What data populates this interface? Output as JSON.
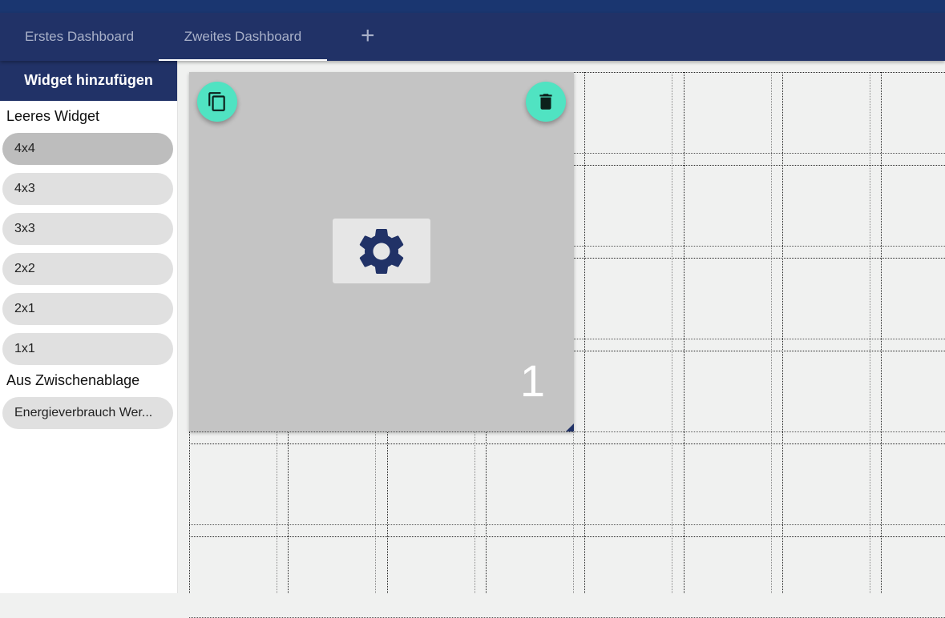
{
  "tabs": [
    {
      "label": "Erstes Dashboard",
      "active": false
    },
    {
      "label": "Zweites Dashboard",
      "active": true
    }
  ],
  "add_tab_label": "+",
  "sidebar": {
    "title": "Widget hinzufügen",
    "empty_section": "Leeres Widget",
    "sizes": [
      "4x4",
      "4x3",
      "3x3",
      "2x2",
      "2x1",
      "1x1"
    ],
    "selected_size": "4x4",
    "clipboard_section": "Aus Zwischenablage",
    "clipboard_items": [
      "Energieverbrauch Wer..."
    ]
  },
  "widget": {
    "number": "1",
    "icons": [
      "copy-icon",
      "delete-icon",
      "gear-icon"
    ]
  },
  "colors": {
    "primary": "#213267",
    "accent": "#50e3c2",
    "widget_bg": "#c4c4c4"
  }
}
